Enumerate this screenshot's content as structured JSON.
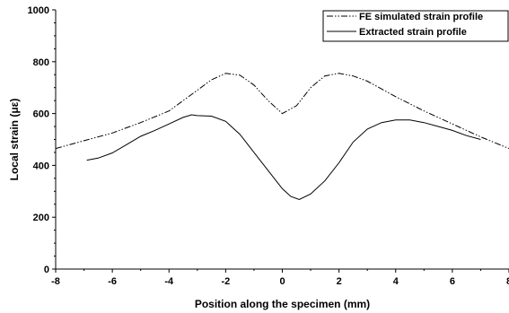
{
  "chart_data": {
    "type": "line",
    "title": "",
    "xlabel": "Position along the specimen (mm)",
    "ylabel": "Local strain (με)",
    "xlim": [
      -8,
      8
    ],
    "ylim": [
      0,
      1000
    ],
    "xticks": [
      -8,
      -6,
      -4,
      -2,
      0,
      2,
      4,
      6,
      8
    ],
    "yticks": [
      0,
      200,
      400,
      600,
      800,
      1000
    ],
    "grid": false,
    "legend_position": "top-right",
    "series": [
      {
        "name": "FE simulated strain profile",
        "style": "dash-dot-dot",
        "color": "#000000",
        "x": [
          -8,
          -7,
          -6,
          -5,
          -4,
          -3,
          -2.5,
          -2,
          -1.5,
          -1,
          -0.5,
          0,
          0.5,
          1,
          1.5,
          2,
          2.5,
          3,
          4,
          5,
          6,
          7,
          8
        ],
        "y": [
          465,
          495,
          525,
          565,
          610,
          690,
          730,
          755,
          748,
          710,
          650,
          600,
          630,
          700,
          745,
          755,
          745,
          725,
          665,
          610,
          560,
          510,
          465
        ]
      },
      {
        "name": "Extracted strain profile",
        "style": "solid",
        "color": "#000000",
        "x": [
          -6.9,
          -6.5,
          -6,
          -5.5,
          -5,
          -4.5,
          -4,
          -3.5,
          -3.2,
          -3,
          -2.5,
          -2,
          -1.5,
          -1,
          -0.5,
          0,
          0.3,
          0.6,
          1,
          1.5,
          2,
          2.5,
          3,
          3.5,
          4,
          4.5,
          5,
          5.5,
          6,
          6.5,
          7
        ],
        "y": [
          420,
          428,
          448,
          480,
          512,
          535,
          560,
          585,
          595,
          592,
          590,
          570,
          520,
          450,
          380,
          310,
          280,
          268,
          290,
          340,
          410,
          490,
          540,
          565,
          575,
          575,
          565,
          550,
          535,
          515,
          500
        ]
      }
    ]
  }
}
